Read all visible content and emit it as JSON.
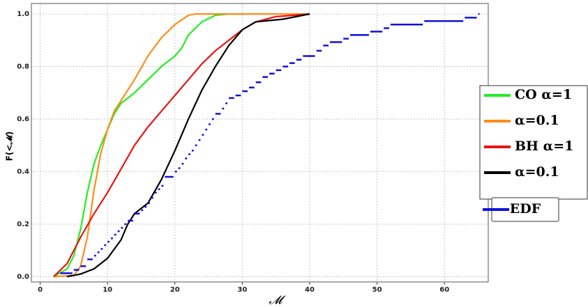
{
  "chart_data": {
    "type": "line",
    "xlabel": "𝓜",
    "ylabel": "F(<𝓜)",
    "xlim": [
      -1.3,
      66.5
    ],
    "ylim": [
      -0.02,
      1.04
    ],
    "xticks": [
      0,
      10,
      20,
      30,
      40,
      50,
      60
    ],
    "yticks": [
      {
        "value": 0,
        "label": "0.0"
      },
      0.2,
      0.4,
      0.6,
      0.8,
      {
        "value": 1,
        "label": "1.0"
      }
    ],
    "grid": true,
    "series": [
      {
        "name": "CO α=1",
        "color": "#22ee22",
        "style": "line",
        "x": [
          2,
          4,
          5,
          6,
          7,
          8,
          9,
          10,
          11,
          12,
          13,
          14,
          16,
          18,
          20,
          21,
          22,
          24,
          26,
          28,
          30
        ],
        "values": [
          0,
          0.03,
          0.08,
          0.18,
          0.32,
          0.43,
          0.5,
          0.56,
          0.62,
          0.66,
          0.68,
          0.7,
          0.75,
          0.8,
          0.84,
          0.87,
          0.92,
          0.97,
          0.995,
          1,
          1
        ]
      },
      {
        "name": "α=0.1",
        "color": "#ff8c1a",
        "style": "line",
        "x": [
          2,
          5,
          6,
          7,
          8,
          9,
          10,
          11,
          12,
          14,
          16,
          18,
          20,
          22,
          23,
          30,
          40
        ],
        "values": [
          0,
          0.005,
          0.04,
          0.15,
          0.33,
          0.47,
          0.56,
          0.63,
          0.67,
          0.75,
          0.84,
          0.91,
          0.96,
          0.995,
          1,
          1,
          1
        ]
      },
      {
        "name": "BH α=1",
        "color": "#ee1111",
        "style": "line",
        "x": [
          2,
          4,
          6,
          8,
          10,
          12,
          14,
          16,
          18,
          20,
          22,
          24,
          26,
          28,
          30,
          32,
          35,
          40
        ],
        "values": [
          0,
          0.05,
          0.15,
          0.24,
          0.32,
          0.41,
          0.5,
          0.57,
          0.63,
          0.69,
          0.75,
          0.81,
          0.86,
          0.9,
          0.94,
          0.97,
          0.99,
          1
        ]
      },
      {
        "name": "α=0.1",
        "color": "#000000",
        "style": "line",
        "x": [
          4,
          6,
          8,
          10,
          12,
          13,
          14,
          16,
          18,
          20,
          22,
          24,
          26,
          28,
          30,
          32,
          34,
          36,
          38,
          40
        ],
        "values": [
          0,
          0.01,
          0.03,
          0.07,
          0.14,
          0.2,
          0.24,
          0.28,
          0.37,
          0.48,
          0.6,
          0.71,
          0.8,
          0.88,
          0.94,
          0.97,
          0.975,
          0.98,
          0.99,
          1
        ]
      },
      {
        "name": "EDF",
        "color": "#1111dd",
        "style": "step",
        "x": [
          3,
          5,
          6,
          7,
          8,
          8.5,
          9,
          9.5,
          10,
          10.5,
          11,
          11.5,
          12,
          12.5,
          13,
          14,
          15,
          15.5,
          16,
          16.5,
          17,
          17.5,
          18,
          18.5,
          20,
          20.5,
          21,
          21.5,
          22,
          22.5,
          23,
          23.5,
          24,
          24.5,
          25,
          25.5,
          26,
          27,
          27.5,
          28,
          29,
          30,
          31,
          32,
          33,
          34,
          35,
          36,
          37,
          38,
          39,
          41,
          42,
          43,
          45,
          46,
          49,
          51,
          52,
          57,
          63,
          65
        ],
        "values": [
          0.013,
          0.026,
          0.04,
          0.066,
          0.08,
          0.093,
          0.106,
          0.12,
          0.133,
          0.146,
          0.16,
          0.173,
          0.186,
          0.2,
          0.213,
          0.24,
          0.253,
          0.266,
          0.28,
          0.3,
          0.32,
          0.333,
          0.346,
          0.38,
          0.4,
          0.413,
          0.43,
          0.45,
          0.466,
          0.48,
          0.5,
          0.52,
          0.54,
          0.56,
          0.58,
          0.6,
          0.62,
          0.64,
          0.66,
          0.68,
          0.69,
          0.706,
          0.72,
          0.74,
          0.76,
          0.773,
          0.786,
          0.8,
          0.813,
          0.826,
          0.84,
          0.86,
          0.88,
          0.893,
          0.906,
          0.92,
          0.933,
          0.946,
          0.96,
          0.973,
          0.986,
          1
        ]
      }
    ]
  }
}
